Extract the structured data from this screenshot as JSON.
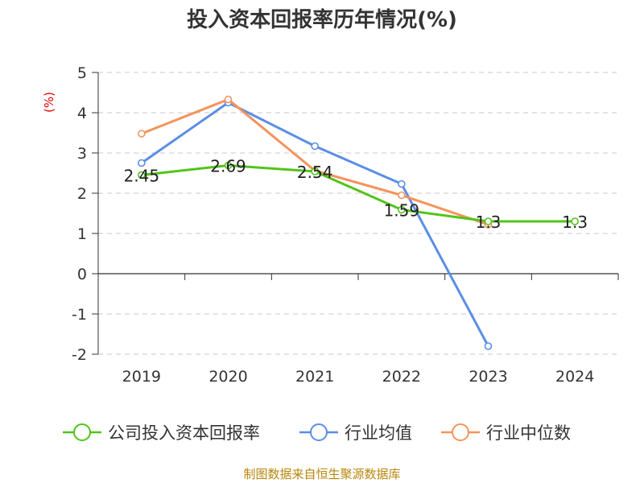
{
  "chart_data": {
    "type": "line",
    "title": "投入资本回报率历年情况(%)",
    "ylabel": "(%)",
    "xlabel": "",
    "categories": [
      "2019",
      "2020",
      "2021",
      "2022",
      "2023",
      "2024"
    ],
    "ylim": [
      -2,
      5
    ],
    "yticks": [
      5,
      4,
      3,
      2,
      1,
      0,
      -1,
      -2
    ],
    "grid": true,
    "legend_position": "bottom",
    "series": [
      {
        "name": "公司投入资本回报率",
        "color": "#52c41a",
        "values": [
          2.45,
          2.69,
          2.54,
          1.59,
          1.3,
          1.3
        ],
        "labels": [
          "2.45",
          "2.69",
          "2.54",
          "1.59",
          "1.3",
          "1.3"
        ]
      },
      {
        "name": "行业均值",
        "color": "#5b8ee6",
        "values": [
          2.75,
          4.25,
          3.17,
          2.23,
          -1.8,
          null
        ]
      },
      {
        "name": "行业中位数",
        "color": "#f4935c",
        "values": [
          3.48,
          4.33,
          2.56,
          1.95,
          1.22,
          null
        ]
      }
    ]
  },
  "source": "制图数据来自恒生聚源数据库"
}
